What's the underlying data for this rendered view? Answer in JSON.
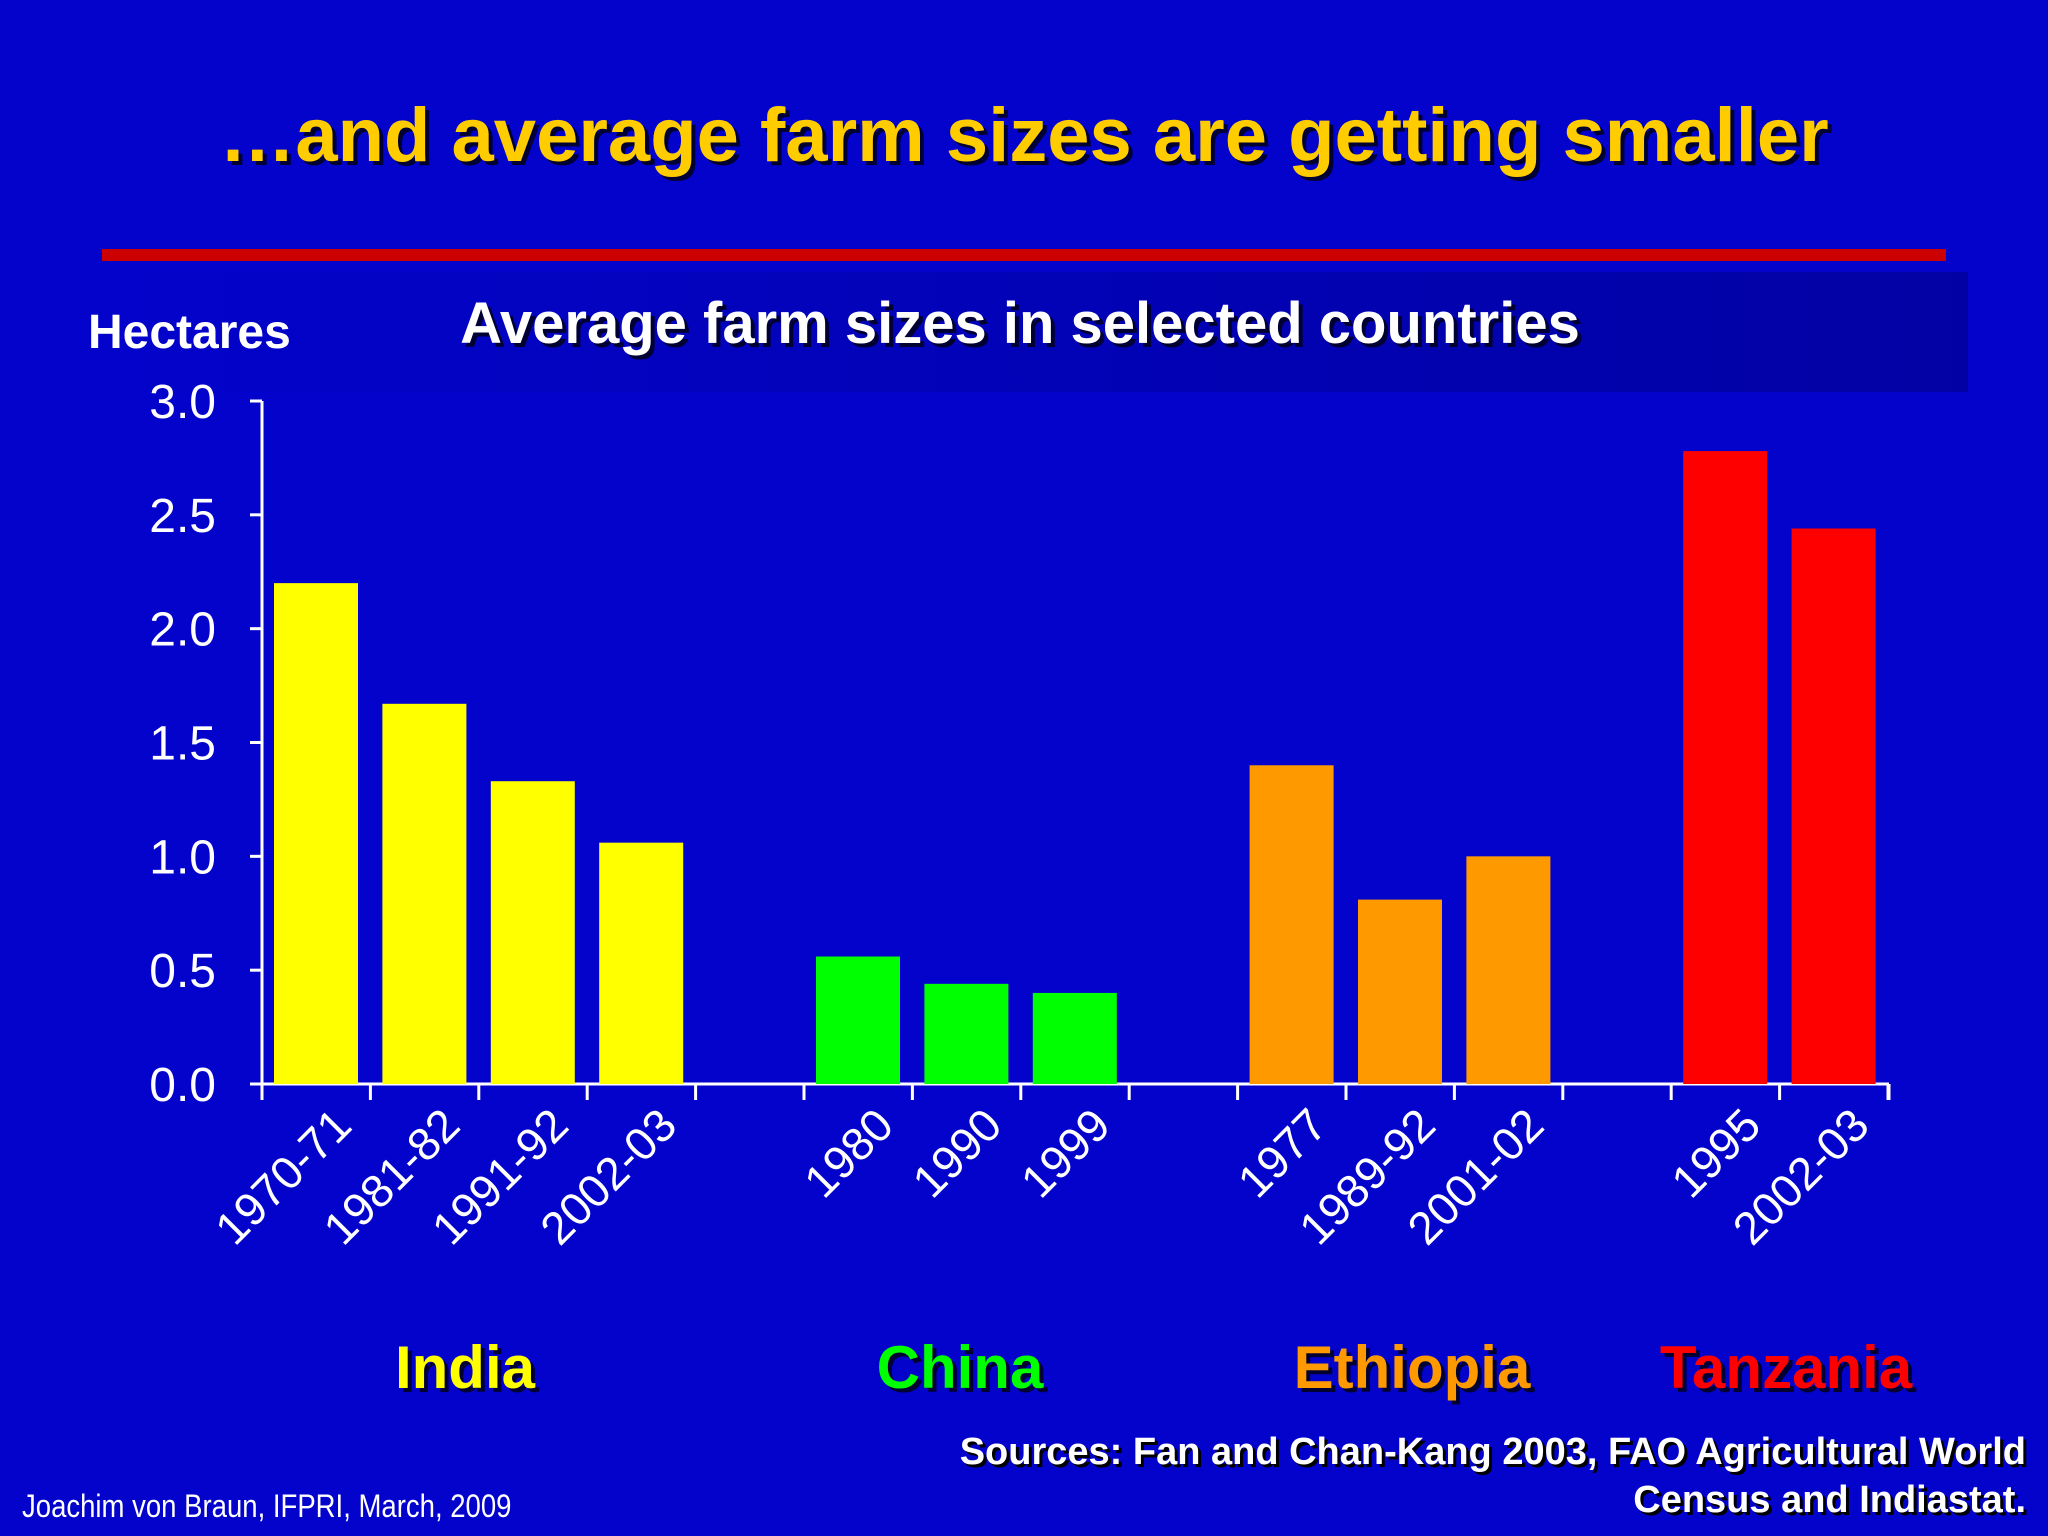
{
  "slide": {
    "title": "…and average farm sizes are getting smaller",
    "author": "Joachim von Braun, IFPRI, March, 2009",
    "sources_line1": "Sources: Fan and Chan-Kang 2003, FAO Agricultural World",
    "sources_line2": "Census and Indiastat.",
    "title_color": "#FFCC00",
    "background_color": "#0303CC",
    "rule_color": "#CC0000"
  },
  "chart_data": {
    "type": "bar",
    "title": "Average farm sizes in selected countries",
    "ylabel": "Hectares",
    "xlabel": "",
    "ylim": [
      0,
      3
    ],
    "yticks": [
      "0.0",
      "0.5",
      "1.0",
      "1.5",
      "2.0",
      "2.5",
      "3.0"
    ],
    "grid": false,
    "groups": [
      {
        "name": "India",
        "color": "#FFFF00",
        "categories": [
          "1970-71",
          "1981-82",
          "1991-92",
          "2002-03"
        ],
        "values": [
          2.2,
          1.67,
          1.33,
          1.06
        ]
      },
      {
        "name": "China",
        "color": "#00FF00",
        "categories": [
          "1980",
          "1990",
          "1999"
        ],
        "values": [
          0.56,
          0.44,
          0.4
        ]
      },
      {
        "name": "Ethiopia",
        "color": "#FF9900",
        "categories": [
          "1977",
          "1989-92",
          "2001-02"
        ],
        "values": [
          1.4,
          0.81,
          1.0
        ]
      },
      {
        "name": "Tanzania",
        "color": "#FF0000",
        "categories": [
          "1995",
          "2002-03"
        ],
        "values": [
          2.78,
          2.44
        ]
      }
    ]
  }
}
